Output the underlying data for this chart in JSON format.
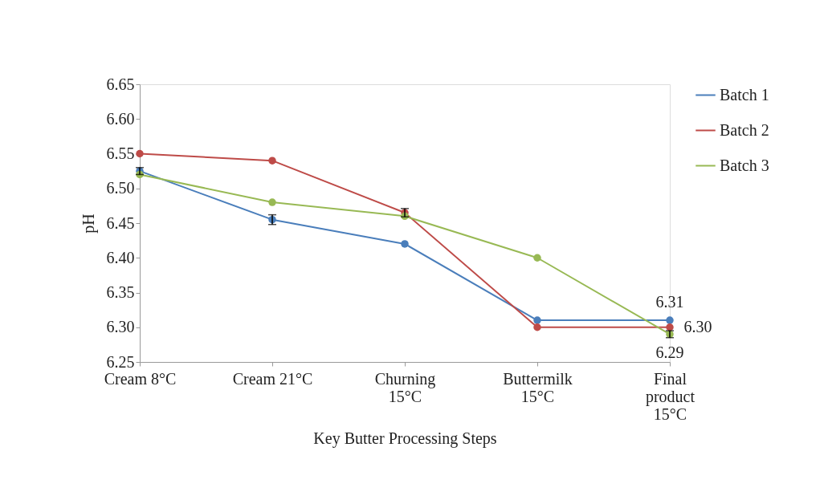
{
  "chart_data": {
    "type": "line",
    "xlabel": "Key Butter Processing Steps",
    "ylabel": "pH",
    "categories": [
      "Cream 8°C",
      "Cream 21°C",
      "Churning\n15°C",
      "Buttermilk\n15°C",
      "Final\nproduct\n15°C"
    ],
    "series": [
      {
        "name": "Batch 1",
        "color": "#4a7ebb",
        "values": [
          6.525,
          6.455,
          6.42,
          6.31,
          6.31
        ],
        "errors": [
          0.005,
          0.007,
          null,
          null,
          null
        ],
        "value_labels": [
          null,
          null,
          null,
          null,
          "6.31"
        ]
      },
      {
        "name": "Batch 2",
        "color": "#be4b48",
        "values": [
          6.55,
          6.54,
          6.465,
          6.3,
          6.3
        ],
        "errors": [
          null,
          null,
          0.006,
          null,
          null
        ],
        "value_labels": [
          null,
          null,
          null,
          null,
          "6.30"
        ]
      },
      {
        "name": "Batch 3",
        "color": "#98b954",
        "values": [
          6.52,
          6.48,
          6.46,
          6.4,
          6.29
        ],
        "errors": [
          null,
          null,
          null,
          null,
          0.005
        ],
        "value_labels": [
          null,
          null,
          null,
          null,
          "6.29"
        ]
      }
    ],
    "ylim": [
      6.25,
      6.65
    ],
    "yticks": [
      6.25,
      {
        "value": 6.3,
        "label": "6.30"
      },
      6.35,
      {
        "value": 6.4,
        "label": "6.40"
      },
      6.45,
      {
        "value": 6.5,
        "label": "6.50"
      },
      6.55,
      {
        "value": 6.6,
        "label": "6.60"
      },
      6.65
    ],
    "grid": false,
    "legend": "right",
    "marker": "circle",
    "line_style": "solid"
  }
}
